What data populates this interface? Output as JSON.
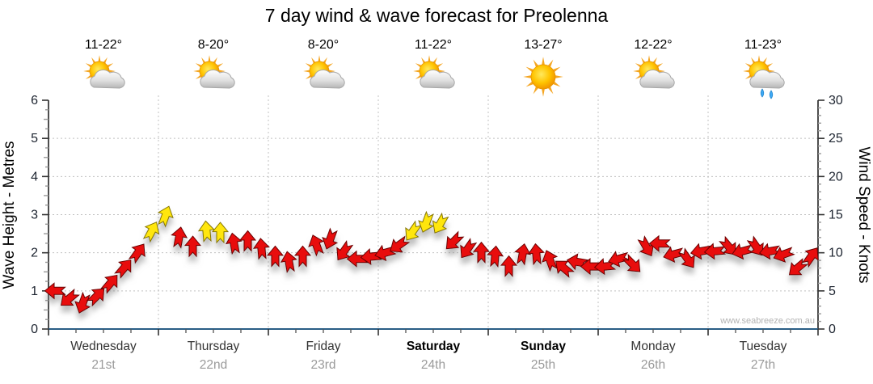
{
  "title": "7 day wind & wave forecast for Preolenna",
  "watermark": "www.seabreeze.com.au",
  "days": [
    {
      "name": "Wednesday",
      "date": "21st",
      "temps": "11-22°",
      "icon": "partly-cloudy",
      "bold": false
    },
    {
      "name": "Thursday",
      "date": "22nd",
      "temps": "8-20°",
      "icon": "partly-cloudy",
      "bold": false
    },
    {
      "name": "Friday",
      "date": "23rd",
      "temps": "8-20°",
      "icon": "partly-cloudy",
      "bold": false
    },
    {
      "name": "Saturday",
      "date": "24th",
      "temps": "11-22°",
      "icon": "partly-cloudy",
      "bold": true
    },
    {
      "name": "Sunday",
      "date": "25th",
      "temps": "13-27°",
      "icon": "sunny",
      "bold": true
    },
    {
      "name": "Monday",
      "date": "26th",
      "temps": "12-22°",
      "icon": "partly-cloudy",
      "bold": false
    },
    {
      "name": "Tuesday",
      "date": "27th",
      "temps": "11-23°",
      "icon": "partly-cloudy-showers",
      "bold": false
    }
  ],
  "chart_data": {
    "type": "scatter",
    "style": "wind-direction-arrows",
    "title": "7 day wind & wave forecast for Preolenna",
    "y_left": {
      "label": "Wave Height - Metres",
      "min": 0,
      "max": 6,
      "ticks": [
        0,
        1,
        2,
        3,
        4,
        5,
        6
      ]
    },
    "y_right": {
      "label": "Wind Speed - Knots",
      "min": 0,
      "max": 30,
      "ticks": [
        0,
        5,
        10,
        15,
        20,
        25,
        30
      ]
    },
    "x_categories": [
      "Wednesday 21st",
      "Thursday 22nd",
      "Friday 23rd",
      "Saturday 24th",
      "Sunday 25th",
      "Monday 26th",
      "Tuesday 27th"
    ],
    "grid": {
      "horizontal_at": [
        1,
        2,
        3,
        4,
        5
      ],
      "vertical_at_day_boundaries": true
    },
    "step_hours": 3,
    "points_per_day": 8,
    "yellow_threshold_knots": 12.5,
    "colors": {
      "low_wind": "#e80f0f",
      "low_wind_stroke": "#6b0000",
      "high_wind": "#ffe60a",
      "high_wind_stroke": "#857600",
      "x_axis": "#2a5d85",
      "gridline": "#c0c0c0"
    },
    "wind_knots": [
      5.0,
      4.0,
      3.4,
      4.3,
      6.0,
      8.0,
      10.0,
      12.8,
      14.8,
      12.0,
      10.8,
      12.8,
      12.6,
      11.2,
      11.5,
      10.5,
      9.5,
      8.8,
      9.5,
      11.0,
      11.8,
      10.2,
      9.2,
      9.5,
      10.0,
      11.0,
      12.8,
      14.0,
      13.8,
      11.5,
      10.5,
      10.0,
      9.5,
      8.2,
      9.8,
      9.8,
      9.0,
      8.0,
      8.8,
      8.2,
      8.2,
      9.2,
      8.5,
      10.8,
      11.2,
      9.8,
      9.2,
      10.2,
      10.2,
      10.8,
      10.2,
      10.8,
      10.2,
      9.8,
      8.0,
      9.5
    ],
    "wind_dir_deg": [
      270,
      230,
      200,
      45,
      40,
      40,
      35,
      28,
      20,
      10,
      0,
      355,
      0,
      350,
      0,
      355,
      0,
      350,
      0,
      340,
      200,
      215,
      270,
      265,
      255,
      235,
      215,
      200,
      210,
      225,
      215,
      0,
      5,
      0,
      10,
      355,
      340,
      310,
      280,
      270,
      265,
      255,
      135,
      150,
      270,
      255,
      145,
      260,
      265,
      140,
      255,
      145,
      260,
      250,
      230,
      35
    ]
  }
}
